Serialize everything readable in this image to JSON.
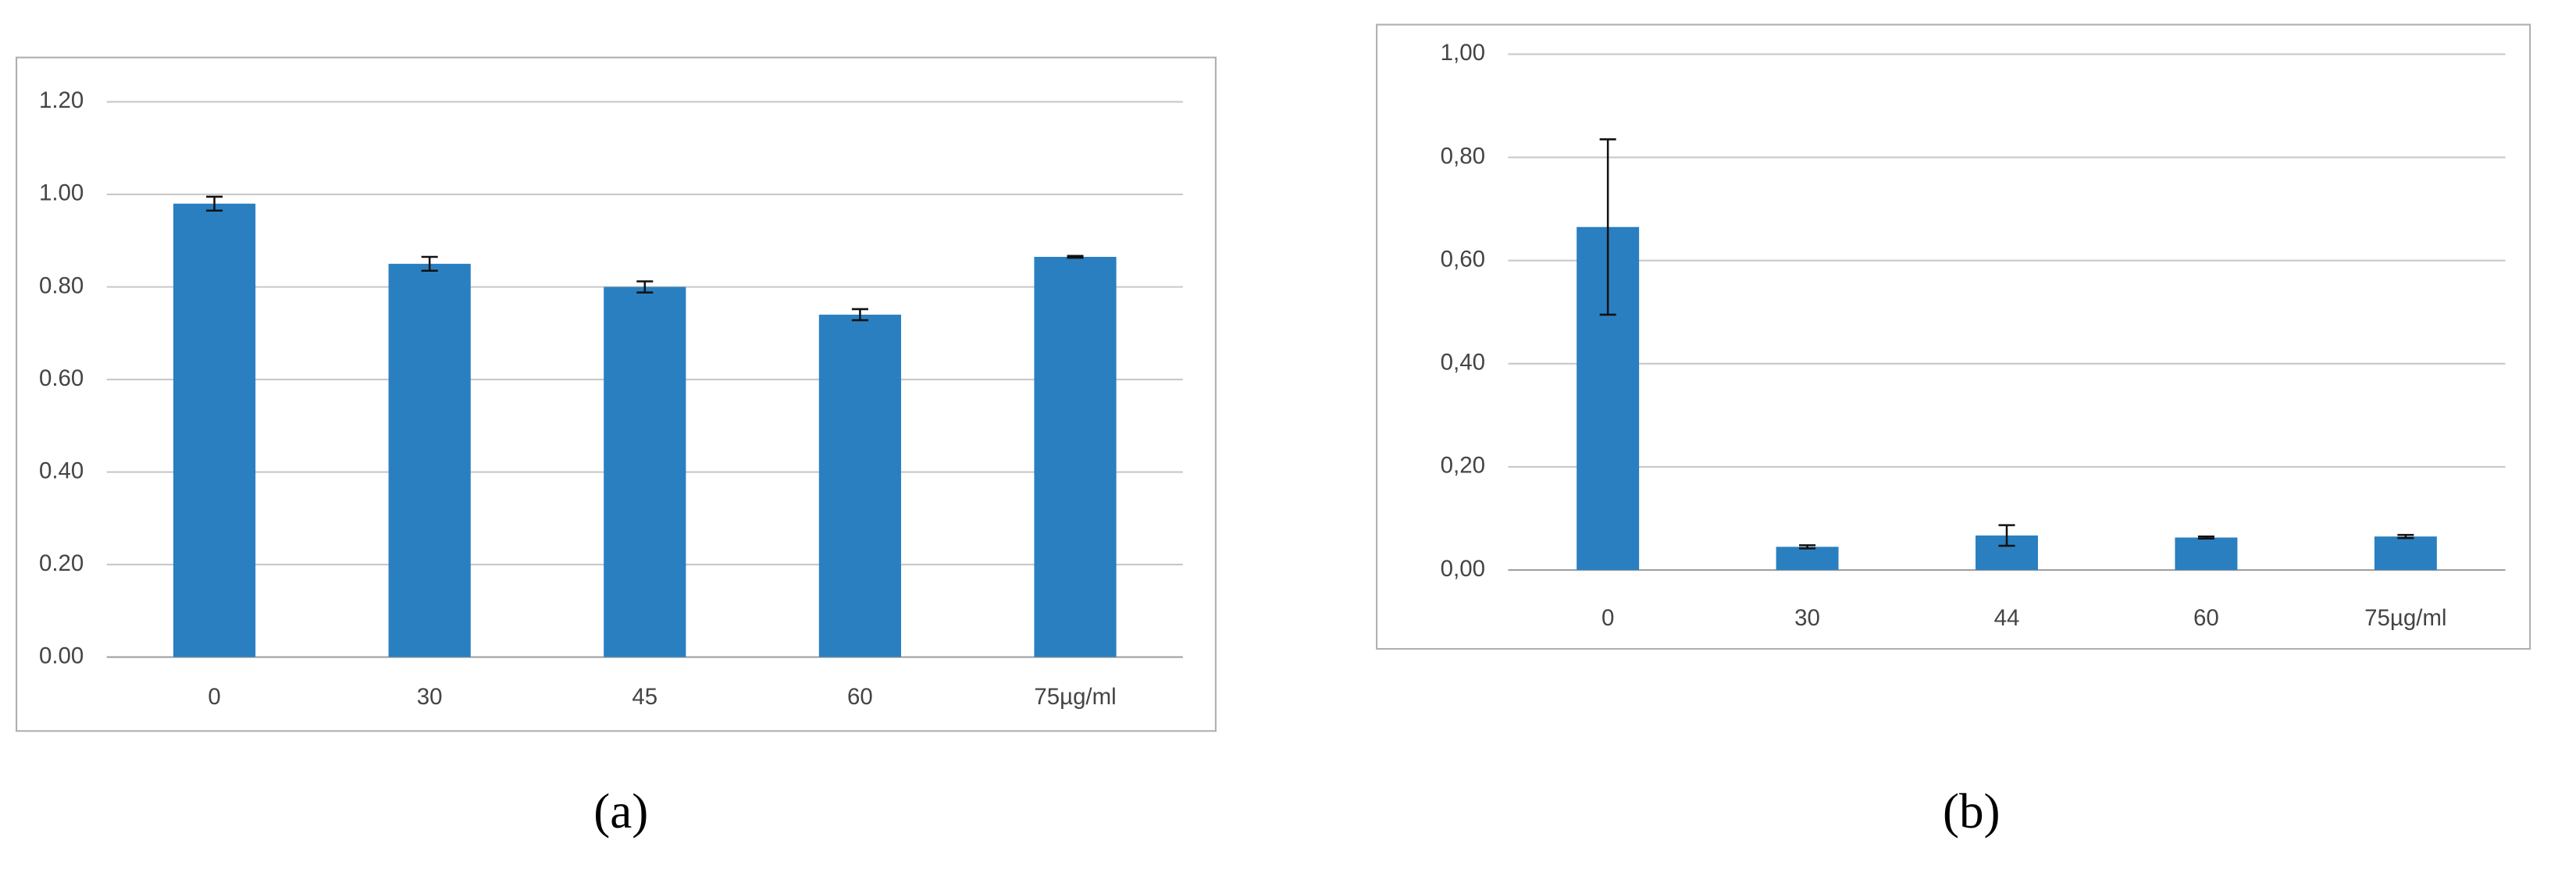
{
  "chart_data": [
    {
      "type": "bar",
      "caption": "(a)",
      "categories": [
        "0",
        "30",
        "45",
        "60",
        "75µg/ml"
      ],
      "values": [
        0.98,
        0.85,
        0.8,
        0.74,
        0.865
      ],
      "errors": [
        0.015,
        0.015,
        0.012,
        0.012,
        0.002
      ],
      "color": "#2a7fc0",
      "ylim": [
        0,
        1.2
      ],
      "yticks": [
        {
          "value": 0,
          "label": "0.00"
        },
        {
          "value": 0.2,
          "label": "0.20"
        },
        {
          "value": 0.4,
          "label": "0.40"
        },
        {
          "value": 0.6,
          "label": "0.60"
        },
        {
          "value": 0.8,
          "label": "0.80"
        },
        {
          "value": 1.0,
          "label": "1.00"
        },
        {
          "value": 1.2,
          "label": "1.20"
        }
      ],
      "grid": true
    },
    {
      "type": "bar",
      "caption": "(b)",
      "categories": [
        "0",
        "30",
        "44",
        "60",
        "75µg/ml"
      ],
      "values": [
        0.665,
        0.045,
        0.067,
        0.063,
        0.065
      ],
      "errors": [
        0.17,
        0.003,
        0.02,
        0.002,
        0.003
      ],
      "color": "#2a7fc0",
      "ylim": [
        0,
        1.0
      ],
      "yticks": [
        {
          "value": 0,
          "label": "0,00"
        },
        {
          "value": 0.2,
          "label": "0,20"
        },
        {
          "value": 0.4,
          "label": "0,40"
        },
        {
          "value": 0.6,
          "label": "0,60"
        },
        {
          "value": 0.8,
          "label": "0,80"
        },
        {
          "value": 1.0,
          "label": "1,00"
        }
      ],
      "grid": true
    }
  ]
}
